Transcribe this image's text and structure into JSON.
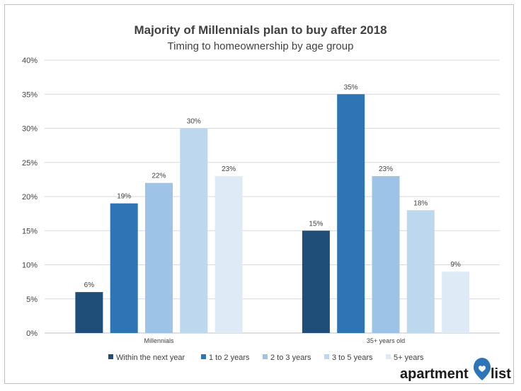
{
  "chart_data": {
    "type": "bar",
    "title": "Majority of Millennials plan to buy after 2018",
    "subtitle": "Timing to homeownership by age group",
    "categories": [
      "Millennials",
      "35+ years old"
    ],
    "series": [
      {
        "name": "Within the next year",
        "color": "#1f4e79",
        "values": [
          6,
          15
        ],
        "labels": [
          "6%",
          "15%"
        ]
      },
      {
        "name": "1 to 2 years",
        "color": "#2e75b6",
        "values": [
          19,
          35
        ],
        "labels": [
          "19%",
          "35%"
        ]
      },
      {
        "name": "2 to 3 years",
        "color": "#9dc3e6",
        "values": [
          22,
          23
        ],
        "labels": [
          "22%",
          "23%"
        ]
      },
      {
        "name": "3 to 5 years",
        "color": "#bdd7ee",
        "values": [
          30,
          18
        ],
        "labels": [
          "30%",
          "18%"
        ]
      },
      {
        "name": "5+ years",
        "color": "#deebf7",
        "values": [
          23,
          9
        ],
        "labels": [
          "23%",
          "9%"
        ]
      }
    ],
    "ylim": [
      0,
      40
    ],
    "yticks": [
      0,
      5,
      10,
      15,
      20,
      25,
      30,
      35,
      40
    ],
    "ytick_labels": [
      "0%",
      "5%",
      "10%",
      "15%",
      "20%",
      "25%",
      "30%",
      "35%",
      "40%"
    ],
    "grid": true,
    "legend_position": "bottom"
  },
  "logo": {
    "text_before": "apartment",
    "text_after": "list",
    "icon": "map-pin-heart-icon",
    "color": "#2e75b6"
  }
}
